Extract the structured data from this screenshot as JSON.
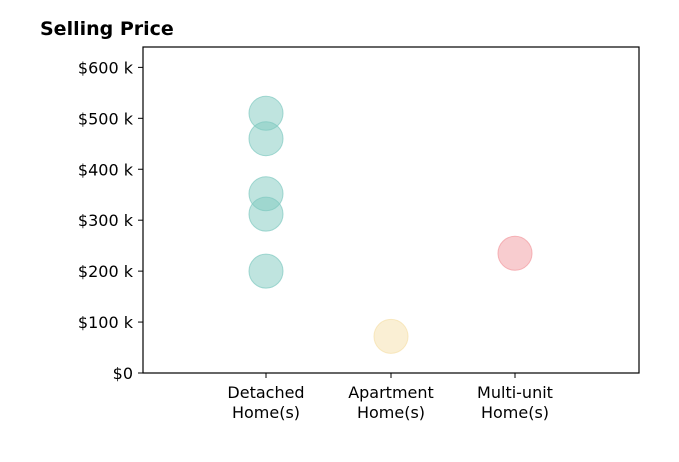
{
  "chart_data": {
    "type": "scatter",
    "title": "Selling Price",
    "xlabel": "",
    "ylabel": "",
    "categories": [
      [
        "Detached",
        "Home(s)"
      ],
      [
        "Apartment",
        "Home(s)"
      ],
      [
        "Multi-unit",
        "Home(s)"
      ]
    ],
    "ylim": [
      0,
      640000
    ],
    "yticks": [
      0,
      100000,
      200000,
      300000,
      400000,
      500000,
      600000
    ],
    "ytick_labels": [
      "$0",
      "$100 k",
      "$200 k",
      "$300 k",
      "$400 k",
      "$500 k",
      "$600 k"
    ],
    "grid": false,
    "points": [
      {
        "category": 0,
        "y": 510000,
        "color": "#7fc9c0"
      },
      {
        "category": 0,
        "y": 460000,
        "color": "#7fc9c0"
      },
      {
        "category": 0,
        "y": 352000,
        "color": "#7fc9c0"
      },
      {
        "category": 0,
        "y": 312000,
        "color": "#7fc9c0"
      },
      {
        "category": 0,
        "y": 200000,
        "color": "#7fc9c0"
      },
      {
        "category": 1,
        "y": 72000,
        "color": "#f5dfaa"
      },
      {
        "category": 2,
        "y": 235000,
        "color": "#f29aa0"
      }
    ]
  }
}
